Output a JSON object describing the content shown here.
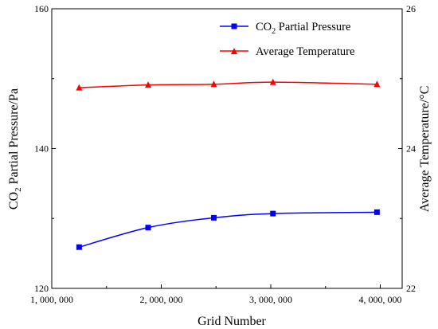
{
  "chart_data": {
    "type": "line",
    "xlabel": "Grid Number",
    "ylabel_left": {
      "main": "CO",
      "sub": "2",
      "rest": " Partial Pressure/Pa"
    },
    "ylabel_right": "Average Temperature/°C",
    "xlim": [
      1000000,
      4200000
    ],
    "ylim_left": [
      120,
      160
    ],
    "ylim_right": [
      22,
      26
    ],
    "x_ticks": [
      1000000,
      2000000,
      3000000,
      4000000
    ],
    "x_tick_labels": [
      "1, 000, 000",
      "2, 000, 000",
      "3, 000, 000",
      "4, 000, 000"
    ],
    "y_left_ticks": [
      120,
      140,
      160
    ],
    "y_left_tick_labels": [
      "120",
      "140",
      "160"
    ],
    "y_right_ticks": [
      22,
      24,
      26
    ],
    "y_right_tick_labels": [
      "22",
      "24",
      "26"
    ],
    "grid": false,
    "legend_position": "top-right",
    "series": [
      {
        "key": "co2",
        "name_main": "CO",
        "name_sub": "2",
        "name_rest": " Partial Pressure",
        "axis": "left",
        "color": "#0000ff",
        "marker": "square",
        "x": [
          1250000,
          1880000,
          2480000,
          3020000,
          3970000
        ],
        "y": [
          125.9,
          128.7,
          130.1,
          130.7,
          130.9
        ]
      },
      {
        "key": "temp",
        "name": "Average Temperature",
        "axis": "right",
        "color": "#ff0000",
        "marker": "triangle",
        "x": [
          1250000,
          1880000,
          2480000,
          3020000,
          3970000
        ],
        "y": [
          24.87,
          24.91,
          24.92,
          24.95,
          24.92
        ]
      }
    ]
  }
}
